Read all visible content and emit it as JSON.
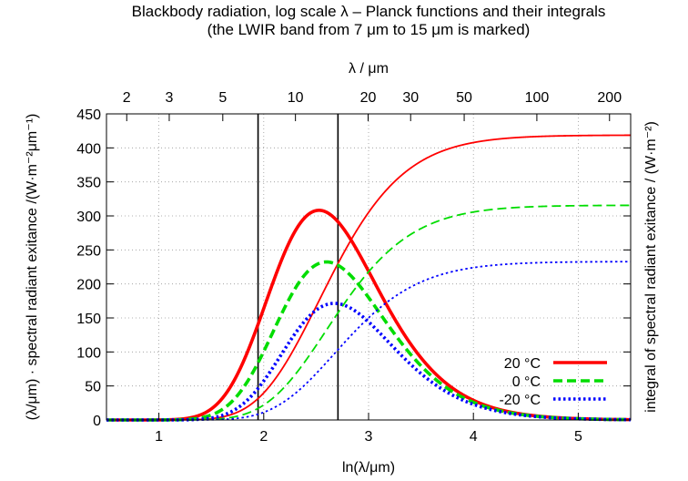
{
  "chart_data": {
    "type": "line",
    "title": "Blackbody radiation, log scale λ – Planck functions and their integrals",
    "subtitle": "(the LWIR band from 7 μm to 15 μm is marked)",
    "xlabel": "ln(λ/μm)",
    "x2label": "λ / μm",
    "ylabel": "(λ/μm) · spectral radiant exitance /(W·m⁻²μm⁻¹)",
    "y2label": "integral of spectral radiant exitance / (W·m⁻²)",
    "xlim": [
      0.5,
      5.5
    ],
    "ylim": [
      0,
      450
    ],
    "x_ticks": [
      1,
      2,
      3,
      4,
      5
    ],
    "y_ticks": [
      0,
      50,
      100,
      150,
      200,
      250,
      300,
      350,
      400,
      450
    ],
    "x2_ticks": [
      2,
      3,
      5,
      10,
      20,
      30,
      50,
      100,
      200
    ],
    "grid": true,
    "legend_position": "bottom-right",
    "band_markers_um": [
      7,
      15
    ],
    "series": [
      {
        "name": "20 °C",
        "temperature_K": 293.15,
        "color": "#ff0000",
        "dash": "solid"
      },
      {
        "name": "0 °C",
        "temperature_K": 273.15,
        "color": "#00dd00",
        "dash": "dashed"
      },
      {
        "name": "-20 °C",
        "temperature_K": 253.15,
        "color": "#0000ff",
        "dash": "dotted"
      }
    ]
  }
}
